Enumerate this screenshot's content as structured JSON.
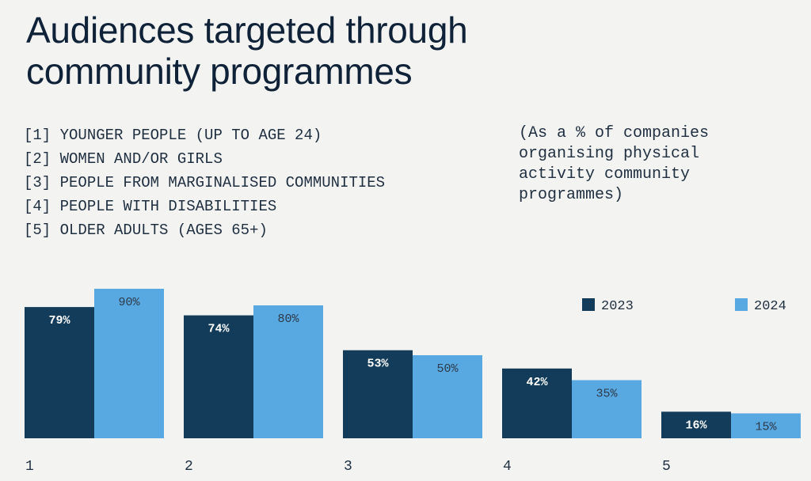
{
  "title_lines": [
    "Audiences targeted through",
    "community programmes"
  ],
  "audience_list": [
    "[1] YOUNGER PEOPLE (UP TO AGE 24)",
    "[2] WOMEN AND/OR GIRLS",
    "[3] PEOPLE FROM MARGINALISED COMMUNITIES",
    "[4] PEOPLE WITH DISABILITIES",
    "[5] OLDER ADULTS (AGES 65+)"
  ],
  "note_lines": [
    "(As a % of companies",
    "organising physical",
    "activity community",
    "programmes)"
  ],
  "colors": {
    "series_2023": "#133c5a",
    "series_2024": "#58a8e2",
    "label_on_dark": "#ffffff",
    "label_on_light": "#2d3a48",
    "background": "#f3f3f1"
  },
  "chart_data": {
    "type": "bar",
    "title": "Audiences targeted through community programmes",
    "subtitle": "(As a % of companies organising physical activity community programmes)",
    "xlabel": "",
    "ylabel": "",
    "categories": [
      "1",
      "2",
      "3",
      "4",
      "5"
    ],
    "series": [
      {
        "name": "2023",
        "values": [
          79,
          74,
          53,
          42,
          16
        ],
        "labels": [
          "79%",
          "74%",
          "53%",
          "42%",
          "16%"
        ]
      },
      {
        "name": "2024",
        "values": [
          90,
          80,
          50,
          35,
          15
        ],
        "labels": [
          "90%",
          "80%",
          "50%",
          "35%",
          "15%"
        ]
      }
    ],
    "ylim": [
      0,
      100
    ],
    "grid": false,
    "legend": {
      "position": "top-right",
      "entries": [
        "2023",
        "2024"
      ]
    }
  }
}
